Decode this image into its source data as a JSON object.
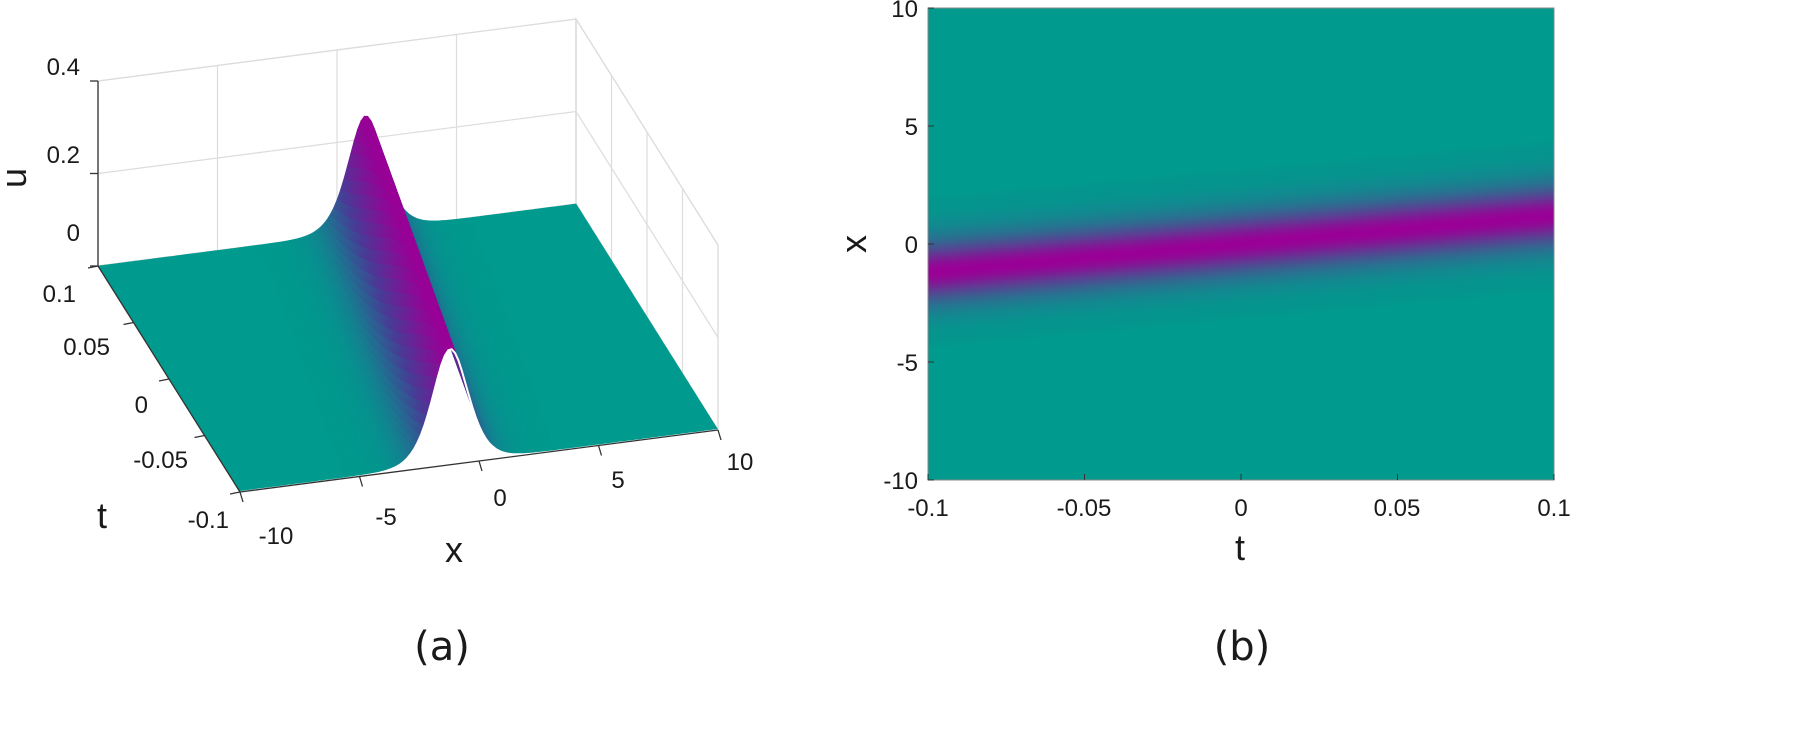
{
  "chart_data": [
    {
      "panel": "(a)",
      "type": "surface3d",
      "xlabel": "x",
      "ylabel": "t",
      "zlabel": "u",
      "xlim": [
        -10,
        10
      ],
      "ylim": [
        -0.1,
        0.1
      ],
      "zlim": [
        0,
        0.4
      ],
      "xticks": [
        "-10",
        "-5",
        "0",
        "5",
        "10"
      ],
      "yticks": [
        "-0.1",
        "-0.05",
        "0",
        "0.05",
        "0.1"
      ],
      "zticks": [
        "0",
        "0.2",
        "0.4"
      ],
      "grid": true,
      "soliton": {
        "amplitude": 0.25,
        "width": 1.0,
        "center_at_t_min": -1.2,
        "center_at_t_max": 1.2
      },
      "colors": {
        "base": "#009a8e",
        "peak": "#9a0096",
        "mid": "#4a3a96"
      }
    },
    {
      "panel": "(b)",
      "type": "heatmap",
      "xlabel": "t",
      "ylabel": "x",
      "xlim": [
        -0.1,
        0.1
      ],
      "ylim": [
        -10,
        10
      ],
      "xticks": [
        "-0.1",
        "-0.05",
        "0",
        "0.05",
        "0.1"
      ],
      "yticks": [
        "-10",
        "-5",
        "0",
        "5",
        "10"
      ],
      "soliton": {
        "amplitude": 0.25,
        "width": 1.0,
        "center_at_t_min": -1.2,
        "center_at_t_max": 1.2
      },
      "colors": {
        "base": "#009a8e",
        "peak": "#9a0096"
      }
    }
  ]
}
